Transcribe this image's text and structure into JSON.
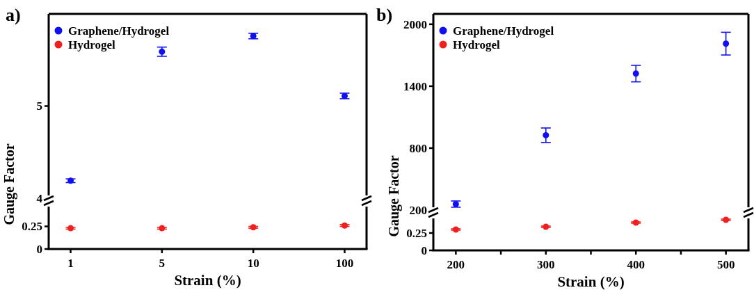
{
  "chart_data": [
    {
      "type": "scatter",
      "title": "a)",
      "ylabel": "Gauge Factor",
      "categories": [
        "1",
        "5",
        "10",
        "100"
      ],
      "ylim": [
        4,
        6
      ],
      "yticks": [
        4,
        5
      ],
      "tick_labels": "y",
      "legend": "top left",
      "marker": "circle",
      "series": [
        {
          "name": "Graphene/Hydrogel",
          "color": "#1010f0",
          "values": [
            4.19,
            5.59,
            5.76,
            5.11
          ],
          "errors": [
            0.02,
            0.05,
            0.03,
            0.03
          ]
        },
        {
          "name": "Hydrogel",
          "color": "#f02020",
          "values": [
            null,
            null,
            null,
            null
          ]
        }
      ]
    },
    {
      "type": "scatter",
      "xlabel": "Strain (%)",
      "categories": [
        "1",
        "5",
        "10",
        "100"
      ],
      "ylim": [
        0,
        0.5
      ],
      "yticks": [
        0,
        0.25
      ],
      "marker": "circle",
      "series": [
        {
          "color": "#f02020",
          "values": [
            0.23,
            0.23,
            0.24,
            0.26
          ],
          "errors": [
            0.01,
            0.01,
            0.01,
            0.01
          ]
        }
      ]
    },
    {
      "type": "scatter",
      "title": "b)",
      "ylabel": "Gauge Factor",
      "xlim": [
        175,
        525
      ],
      "xticks": [
        200,
        300,
        400,
        500
      ],
      "ylim": [
        200,
        2100
      ],
      "yticks": [
        200,
        800,
        1400,
        2000
      ],
      "tick_labels": "y",
      "legend": "top left",
      "marker": "circle",
      "series": [
        {
          "name": "Graphene/Hydrogel",
          "color": "#1010f0",
          "x": [
            200,
            300,
            400,
            500
          ],
          "values": [
            258,
            925,
            1522,
            1812
          ],
          "errors": [
            30,
            70,
            80,
            110
          ]
        },
        {
          "name": "Hydrogel",
          "color": "#f02020",
          "values": [
            null,
            null,
            null,
            null
          ]
        }
      ]
    },
    {
      "type": "scatter",
      "xlabel": "Strain (%)",
      "xlim": [
        175,
        525
      ],
      "xticks": [
        200,
        {
          "value": 250,
          "label": null
        },
        300,
        {
          "value": 350,
          "label": null
        },
        400,
        {
          "value": 450,
          "label": null
        },
        500
      ],
      "ylim": [
        0,
        0.5
      ],
      "yticks": [
        0,
        0.25
      ],
      "marker": "circle",
      "series": [
        {
          "color": "#f02020",
          "x": [
            200,
            300,
            400,
            500
          ],
          "values": [
            0.3,
            0.34,
            0.4,
            0.44
          ],
          "errors": [
            0.01,
            0.01,
            0.01,
            0.01
          ]
        }
      ]
    }
  ]
}
